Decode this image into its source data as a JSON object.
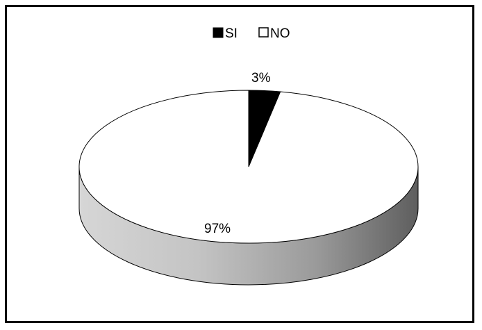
{
  "chart_data": {
    "type": "pie",
    "style": "3d",
    "categories": [
      "SI",
      "NO"
    ],
    "values": [
      3,
      97
    ],
    "data_labels": [
      "3%",
      "97%"
    ],
    "colors": [
      "#000000",
      "#ffffff"
    ],
    "legend_position": "top",
    "title": ""
  }
}
